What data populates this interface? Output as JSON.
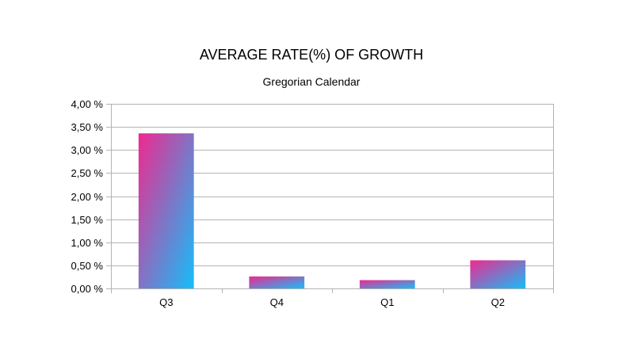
{
  "chart_data": {
    "type": "bar",
    "title": "AVERAGE RATE(%) OF GROWTH",
    "subtitle": "Gregorian Calendar",
    "xlabel": "",
    "ylabel": "",
    "categories": [
      "Q3",
      "Q4",
      "Q1",
      "Q2"
    ],
    "values": [
      3.36,
      0.26,
      0.18,
      0.61
    ],
    "ylim": [
      0,
      4
    ],
    "ytick_values": [
      0,
      0.5,
      1,
      1.5,
      2,
      2.5,
      3,
      3.5,
      4
    ],
    "ytick_labels": [
      "0,00 %",
      "0,50 %",
      "1,00 %",
      "1,50 %",
      "2,00 %",
      "2,50 %",
      "3,00 %",
      "3,50 %",
      "4,00 %"
    ],
    "grid": true,
    "legend": "none",
    "colors": {
      "bar_gradient_start": "#f0288f",
      "bar_gradient_end": "#14befa",
      "grid": "#b3b3b3",
      "text": "#000000"
    }
  }
}
